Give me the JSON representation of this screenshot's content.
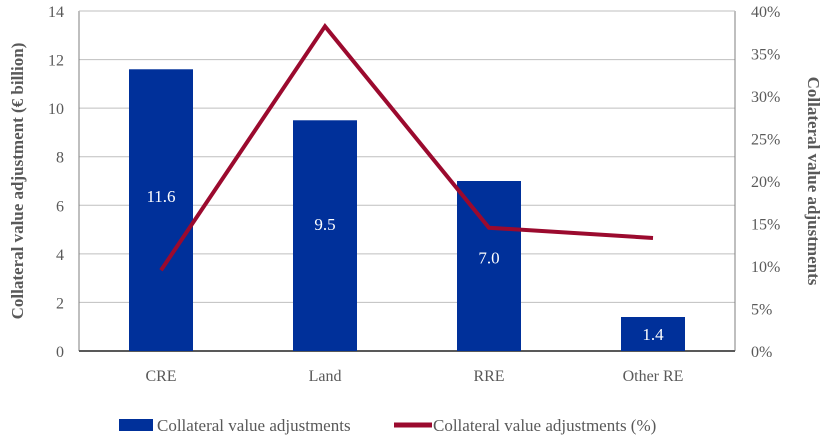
{
  "chart_data": {
    "type": "bar+line",
    "categories": [
      "CRE",
      "Land",
      "RRE",
      "Other RE"
    ],
    "series": [
      {
        "name": "Collateral value adjustments",
        "type": "bar",
        "axis": "left",
        "values": [
          11.6,
          9.5,
          7.0,
          1.4
        ],
        "color": "#00309A",
        "data_labels": [
          "11.6",
          "9.5",
          "7.0",
          "1.4"
        ]
      },
      {
        "name": "Collateral value adjustments (%)",
        "type": "line",
        "axis": "right",
        "values": [
          9.5,
          38.2,
          14.5,
          13.3
        ],
        "color": "#9B0A2E"
      }
    ],
    "ylabel": "Collateral value adjustment (€ billion)",
    "y2label": "Collateral value adjustments",
    "ylim": [
      0,
      14
    ],
    "y2lim": [
      0,
      40
    ],
    "yticks": [
      "0",
      "2",
      "4",
      "6",
      "8",
      "10",
      "12",
      "14"
    ],
    "y2ticks": [
      "0%",
      "5%",
      "10%",
      "15%",
      "20%",
      "25%",
      "30%",
      "35%",
      "40%"
    ],
    "grid": true,
    "legend": "bottom"
  }
}
